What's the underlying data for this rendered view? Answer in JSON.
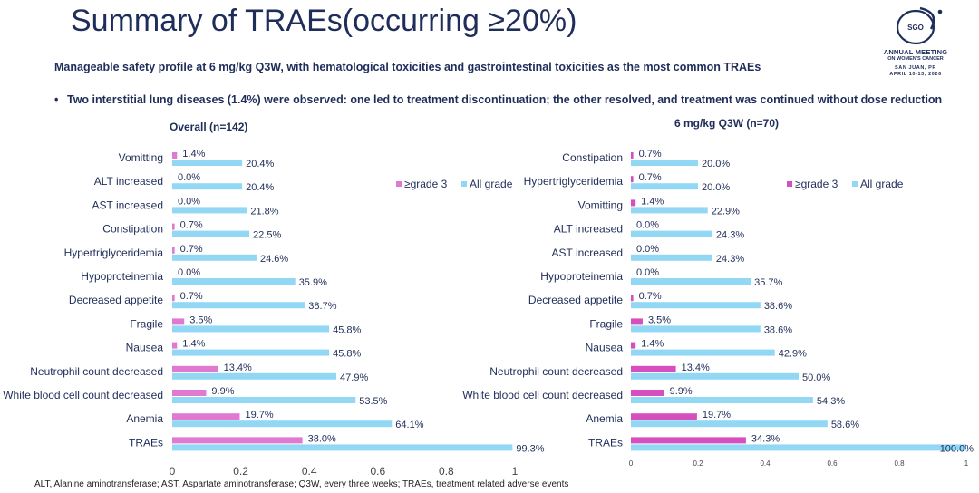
{
  "slide": {
    "title": "Summary of TRAEs(occurring ≥20%)",
    "subtitle": "Manageable safety profile at 6 mg/kg Q3W, with hematological toxicities and gastrointestinal toxicities as the most common TRAEs",
    "bullet_marker": "•",
    "bullet_text": "Two interstitial lung diseases (1.4%) were observed: one led to treatment discontinuation; the other resolved, and treatment was continued without dose reduction",
    "footnote": "ALT, Alanine aminotransferase; AST, Aspartate aminotransferase; Q3W, every three weeks; TRAEs, treatment related adverse events"
  },
  "logo": {
    "mark_text": "SGO",
    "line1": "ANNUAL MEETING",
    "line2": "ON WOMEN'S CANCER",
    "line3": "SAN JUAN, PR",
    "line4": "APRIL 10-13, 2026"
  },
  "colors": {
    "grade3": "#e07ad1",
    "grade3_dark": "#d64fbf",
    "all_grade": "#92d8f5",
    "text": "#1f2d5a"
  },
  "chart_data": [
    {
      "type": "bar",
      "orientation": "horizontal",
      "title": "Overall (n=142)",
      "categories": [
        "Vomitting",
        "ALT increased",
        "AST increased",
        "Constipation",
        "Hypertriglyceridemia",
        "Hypoproteinemia",
        "Decreased appetite",
        "Fragile",
        "Nausea",
        "Neutrophil count decreased",
        "White blood cell count decreased",
        "Anemia",
        "TRAEs"
      ],
      "series": [
        {
          "name": "≥grade 3",
          "values": [
            0.014,
            0.0,
            0.0,
            0.007,
            0.007,
            0.0,
            0.007,
            0.035,
            0.014,
            0.134,
            0.099,
            0.197,
            0.38
          ],
          "labels": [
            "1.4%",
            "0.0%",
            "0.0%",
            "0.7%",
            "0.7%",
            "0.0%",
            "0.7%",
            "3.5%",
            "1.4%",
            "13.4%",
            "9.9%",
            "19.7%",
            "38.0%"
          ]
        },
        {
          "name": "All grade",
          "values": [
            0.204,
            0.204,
            0.218,
            0.225,
            0.246,
            0.359,
            0.387,
            0.458,
            0.458,
            0.479,
            0.535,
            0.641,
            0.993
          ],
          "labels": [
            "20.4%",
            "20.4%",
            "21.8%",
            "22.5%",
            "24.6%",
            "35.9%",
            "38.7%",
            "45.8%",
            "45.8%",
            "47.9%",
            "53.5%",
            "64.1%",
            "99.3%"
          ]
        }
      ],
      "xlim": [
        0,
        1
      ],
      "xticks": [
        "0",
        "0.2",
        "0.4",
        "0.6",
        "0.8",
        "1"
      ],
      "legend": "top-right"
    },
    {
      "type": "bar",
      "orientation": "horizontal",
      "title": "6 mg/kg Q3W (n=70)",
      "categories": [
        "Constipation",
        "Hypertriglyceridemia",
        "Vomitting",
        "ALT increased",
        "AST increased",
        "Hypoproteinemia",
        "Decreased appetite",
        "Fragile",
        "Nausea",
        "Neutrophil count decreased",
        "White blood cell count decreased",
        "Anemia",
        "TRAEs"
      ],
      "series": [
        {
          "name": "≥grade 3",
          "values": [
            0.007,
            0.007,
            0.014,
            0.0,
            0.0,
            0.0,
            0.007,
            0.035,
            0.014,
            0.134,
            0.099,
            0.197,
            0.343
          ],
          "labels": [
            "0.7%",
            "0.7%",
            "1.4%",
            "0.0%",
            "0.0%",
            "0.0%",
            "0.7%",
            "3.5%",
            "1.4%",
            "13.4%",
            "9.9%",
            "19.7%",
            "34.3%"
          ]
        },
        {
          "name": "All grade",
          "values": [
            0.2,
            0.2,
            0.229,
            0.243,
            0.243,
            0.357,
            0.386,
            0.386,
            0.429,
            0.5,
            0.543,
            0.586,
            1.0
          ],
          "labels": [
            "20.0%",
            "20.0%",
            "22.9%",
            "24.3%",
            "24.3%",
            "35.7%",
            "38.6%",
            "38.6%",
            "42.9%",
            "50.0%",
            "54.3%",
            "58.6%",
            "100.0%"
          ]
        }
      ],
      "xlim": [
        0,
        1
      ],
      "xticks": [
        "0",
        "0.2",
        "0.4",
        "0.6",
        "0.8",
        "1"
      ],
      "legend": "top-right"
    }
  ]
}
